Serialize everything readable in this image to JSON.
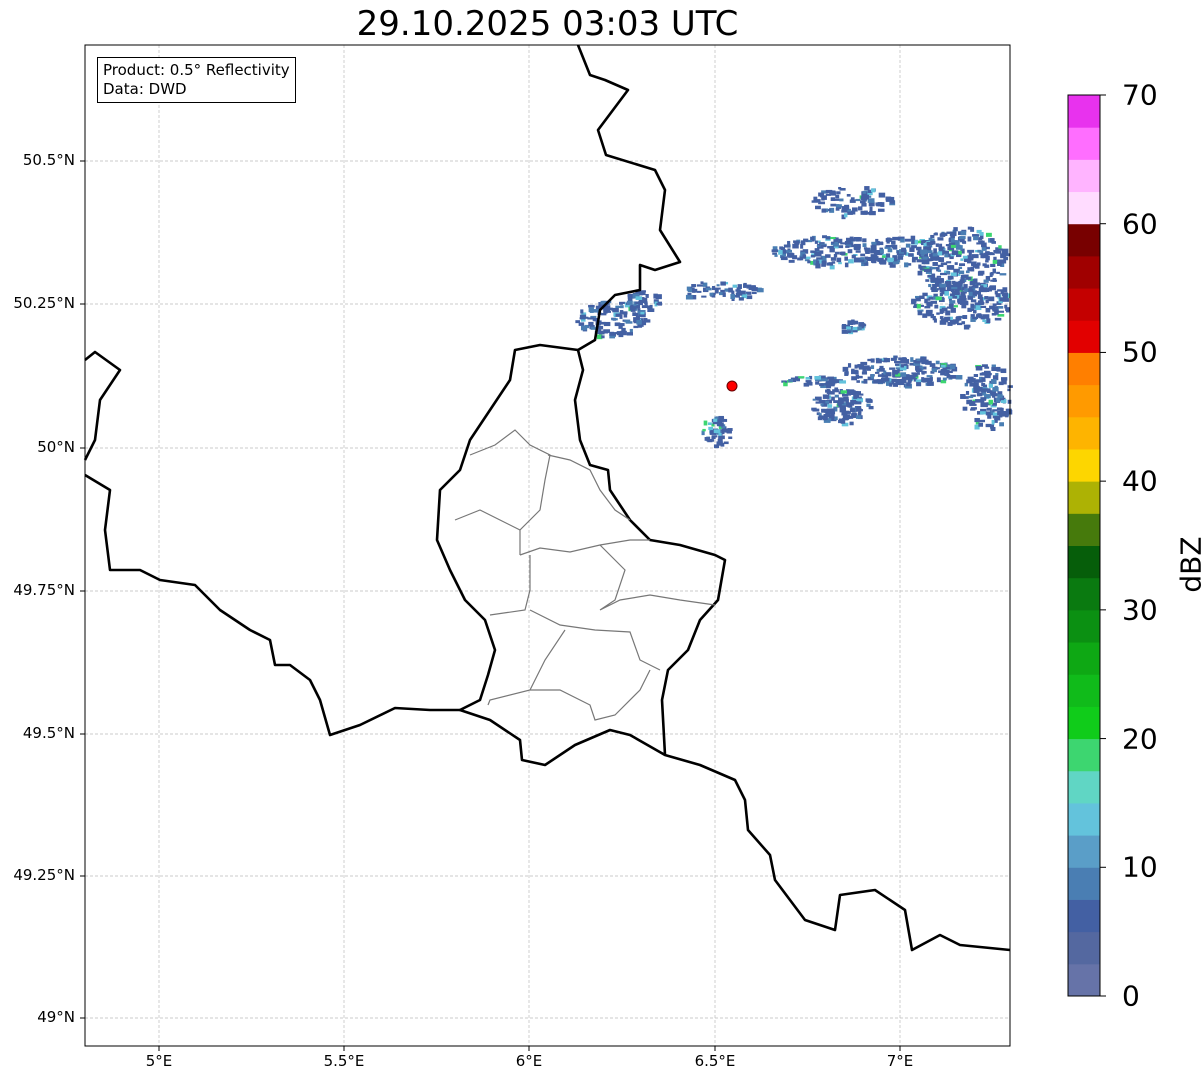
{
  "title": "29.10.2025 03:03 UTC",
  "info_box": {
    "line1": "Product: 0.5° Reflectivity",
    "line2": "Data: DWD"
  },
  "axes": {
    "lat_ticks": [
      "50.5°N",
      "50.25°N",
      "50°N",
      "49.75°N",
      "49.5°N",
      "49.25°N",
      "49°N"
    ],
    "lon_ticks": [
      "5°E",
      "5.5°E",
      "6°E",
      "6.5°E",
      "7°E"
    ]
  },
  "colorbar": {
    "label": "dBZ",
    "ticks": [
      "0",
      "10",
      "20",
      "30",
      "40",
      "50",
      "60",
      "70"
    ],
    "range": [
      0,
      70
    ],
    "step": 2.5,
    "colors": [
      "#6673a8",
      "#5468a0",
      "#4360a3",
      "#4a7eb3",
      "#5a9ec8",
      "#63c3dc",
      "#60d6c4",
      "#3dd670",
      "#10cc1a",
      "#10bb1a",
      "#0ea814",
      "#0b9012",
      "#0a7a10",
      "#065e0a",
      "#467a0c",
      "#adb204",
      "#fdd600",
      "#feb400",
      "#ff9a00",
      "#ff7f00",
      "#e20000",
      "#c40000",
      "#a00000",
      "#780000",
      "#ffdcff",
      "#ffb4ff",
      "#ff6eff",
      "#e832ee"
    ]
  },
  "radar_site_color": "#ff0000"
}
